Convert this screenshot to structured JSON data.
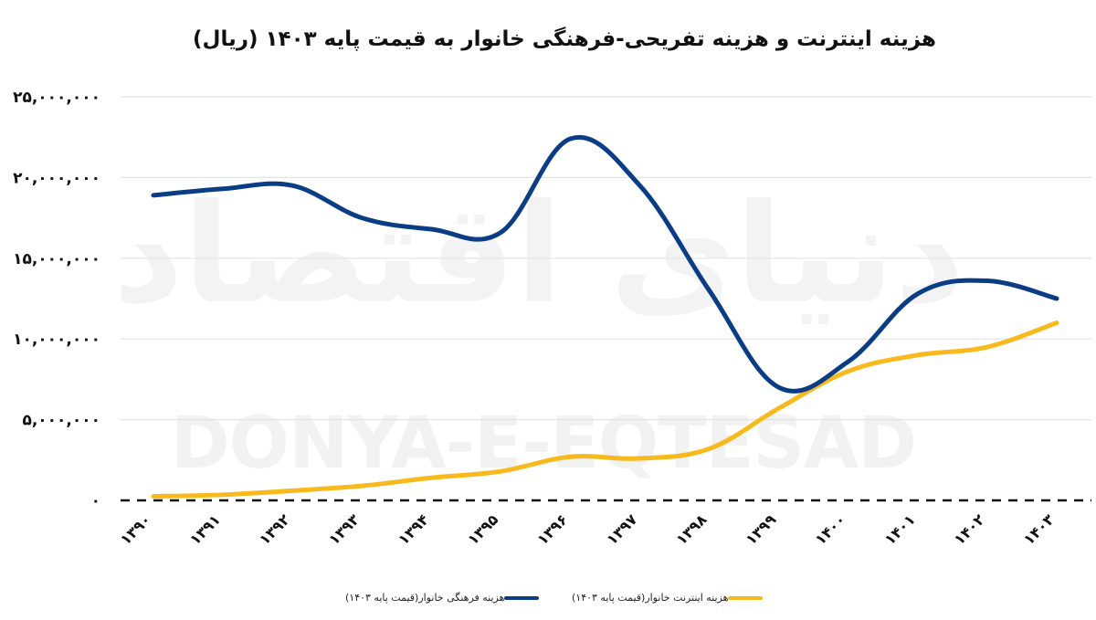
{
  "chart_data": {
    "type": "line",
    "title": "هزینه اینترنت و هزینه تفریحی-فرهنگی خانوار به قیمت پایه ۱۴۰۳ (ریال)",
    "xlabel": "",
    "ylabel": "",
    "ylim": [
      0,
      25000000
    ],
    "y_ticks": [
      0,
      5000000,
      10000000,
      15000000,
      20000000,
      25000000
    ],
    "y_tick_labels": [
      "۰",
      "۵,۰۰۰,۰۰۰",
      "۱۰,۰۰۰,۰۰۰",
      "۱۵,۰۰۰,۰۰۰",
      "۲۰,۰۰۰,۰۰۰",
      "۲۵,۰۰۰,۰۰۰"
    ],
    "categories": [
      "۱۳۹۰",
      "۱۳۹۱",
      "۱۳۹۲",
      "۱۳۹۳",
      "۱۳۹۴",
      "۱۳۹۵",
      "۱۳۹۶",
      "۱۳۹۷",
      "۱۳۹۸",
      "۱۳۹۹",
      "۱۴۰۰",
      "۱۴۰۱",
      "۱۴۰۲",
      "۱۴۰۳"
    ],
    "series": [
      {
        "name": "هزینه فرهنگی خانوار(قیمت پایه ۱۴۰۳)",
        "color": "#0a3d85",
        "values": [
          18900000,
          19300000,
          19500000,
          17500000,
          16800000,
          16600000,
          22400000,
          19500000,
          13000000,
          7000000,
          8600000,
          12800000,
          13600000,
          12500000
        ]
      },
      {
        "name": "هزینه اینترنت خانوار(قیمت پایه ۱۴۰۳)",
        "color": "#f8b91c",
        "values": [
          250000,
          350000,
          600000,
          900000,
          1400000,
          1800000,
          2700000,
          2600000,
          3200000,
          5700000,
          8000000,
          9000000,
          9500000,
          11000000
        ]
      }
    ],
    "grid": true,
    "baseline_dashed": true,
    "legend_position": "bottom",
    "smooth": true,
    "watermark": {
      "persian": "دنیای اقتصاد",
      "latin": "DONYA-E-EQTESAD"
    }
  }
}
